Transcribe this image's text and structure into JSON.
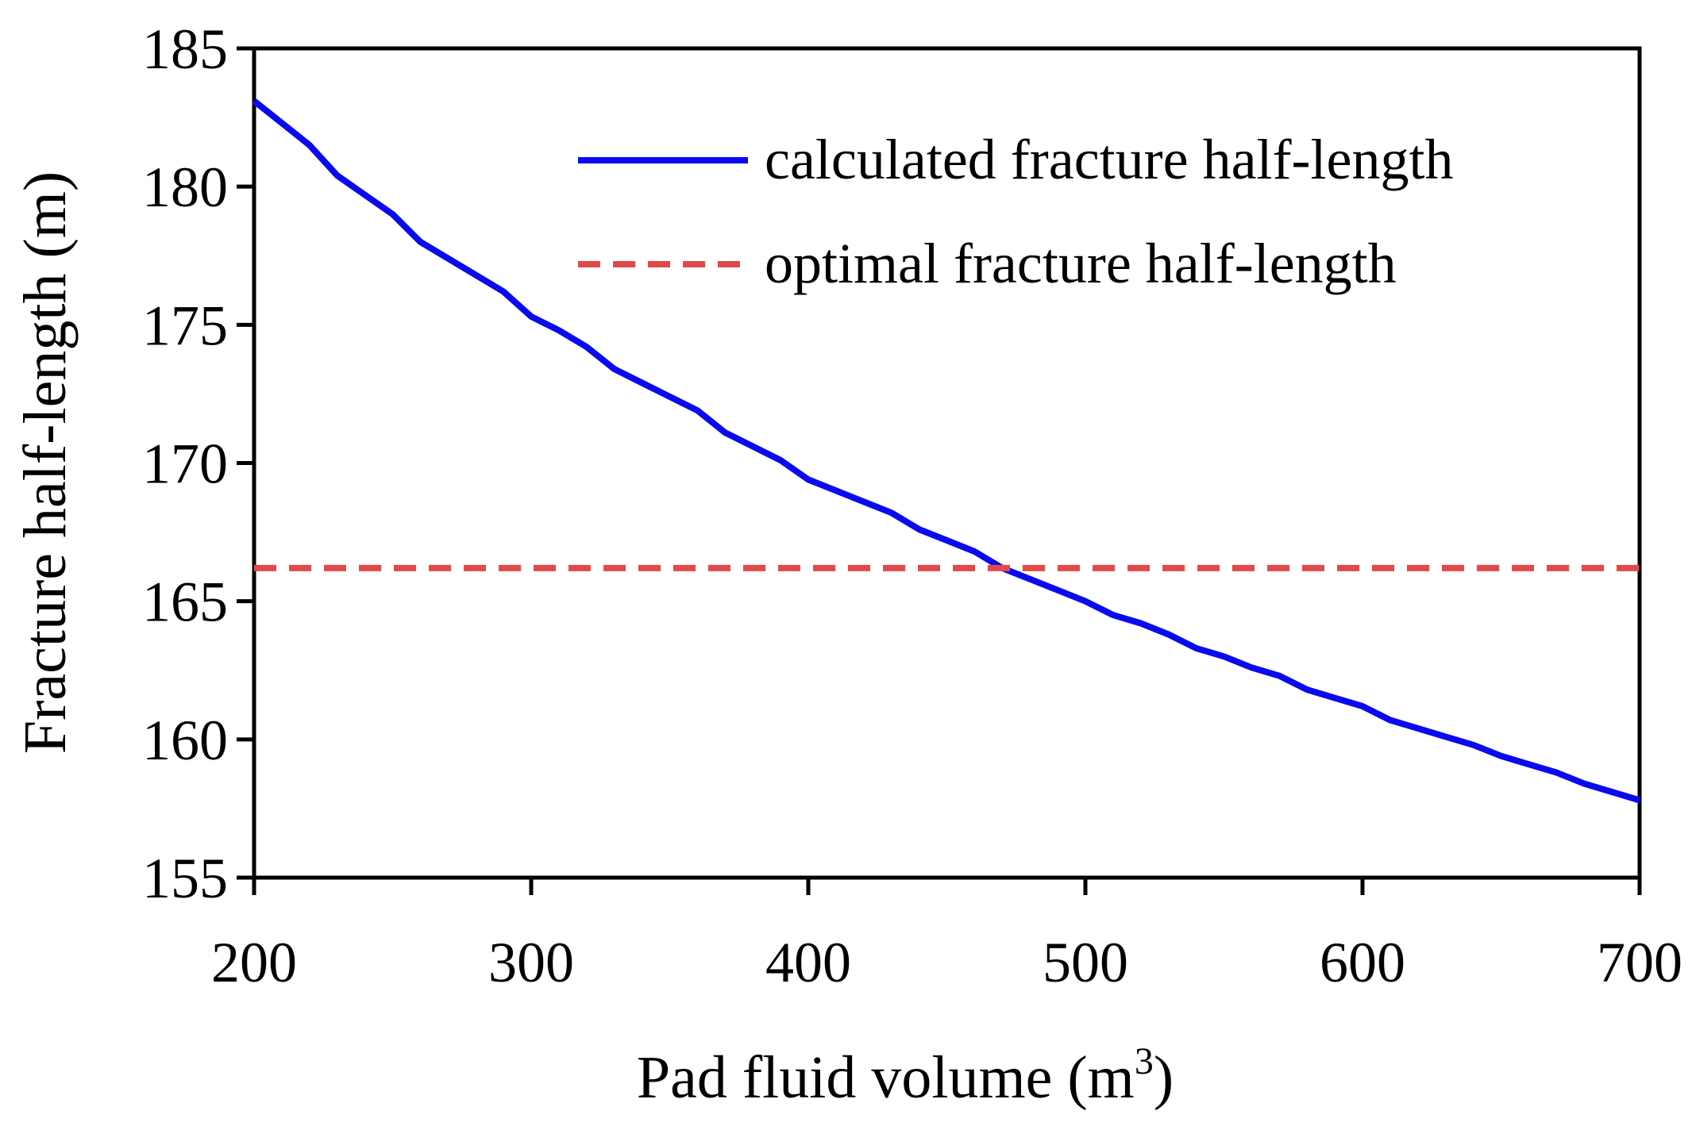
{
  "chart_data": {
    "type": "line",
    "title": "",
    "xlabel": "Pad fluid volume (m",
    "xlabel_sup": "3",
    "xlabel_tail": ")",
    "ylabel": "Fracture half-length (m)",
    "xlim": [
      200,
      700
    ],
    "ylim": [
      155,
      185
    ],
    "xticks": [
      200,
      300,
      400,
      500,
      600,
      700
    ],
    "yticks": [
      155,
      160,
      165,
      170,
      175,
      180,
      185
    ],
    "grid": false,
    "legend_position": "top-right",
    "series": [
      {
        "name": "calculated fracture half-length",
        "color": "#0a0af0",
        "style": "solid",
        "x": [
          200,
          210,
          220,
          230,
          240,
          250,
          260,
          270,
          280,
          290,
          300,
          310,
          320,
          330,
          340,
          350,
          360,
          370,
          380,
          390,
          400,
          410,
          420,
          430,
          440,
          450,
          460,
          470,
          480,
          490,
          500,
          510,
          520,
          530,
          540,
          550,
          560,
          570,
          580,
          590,
          600,
          610,
          620,
          630,
          640,
          650,
          660,
          670,
          680,
          690,
          700
        ],
        "y": [
          183.1,
          182.3,
          181.5,
          180.4,
          179.7,
          179.0,
          178.0,
          177.4,
          176.8,
          176.2,
          175.3,
          174.8,
          174.2,
          173.4,
          172.9,
          172.4,
          171.9,
          171.1,
          170.6,
          170.1,
          169.4,
          169.0,
          168.6,
          168.2,
          167.6,
          167.2,
          166.8,
          166.2,
          165.8,
          165.4,
          165.0,
          164.5,
          164.2,
          163.8,
          163.3,
          163.0,
          162.6,
          162.3,
          161.8,
          161.5,
          161.2,
          160.7,
          160.4,
          160.1,
          159.8,
          159.4,
          159.1,
          158.8,
          158.4,
          158.1,
          157.8
        ]
      },
      {
        "name": "optimal fracture half-length",
        "color": "#e04a4a",
        "style": "dashed",
        "x": [
          200,
          700
        ],
        "y": [
          166.2,
          166.2
        ]
      }
    ]
  }
}
